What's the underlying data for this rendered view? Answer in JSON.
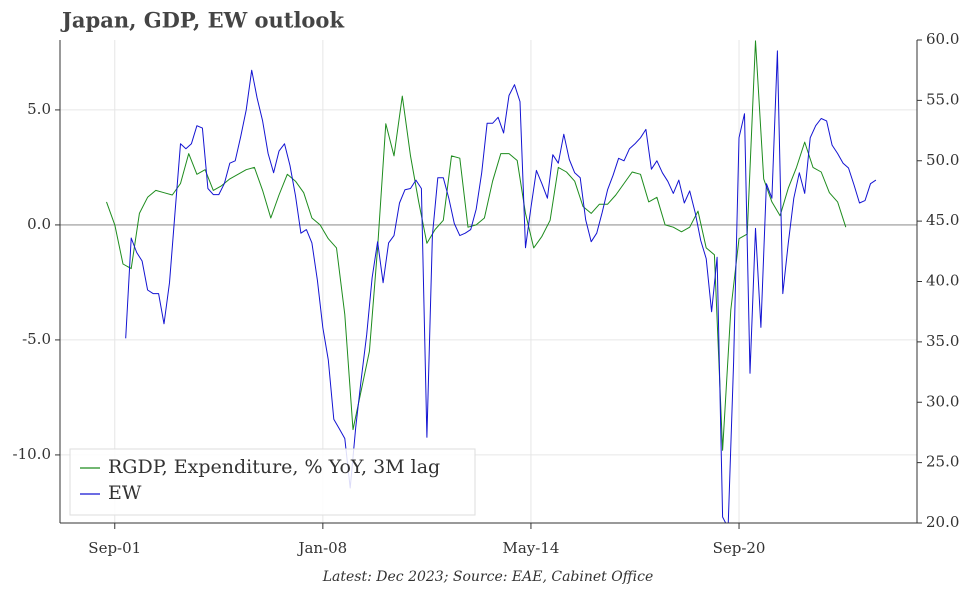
{
  "chart_data": {
    "type": "line",
    "title": "Japan, GDP, EW outlook",
    "footnote": "Latest: Dec 2023; Source: EAE, Cabinet Office",
    "xlim": [
      "2000-01",
      "2026-02"
    ],
    "xticks": [
      {
        "value": "2001-09",
        "label": "Sep-01"
      },
      {
        "value": "2008-01",
        "label": "Jan-08"
      },
      {
        "value": "2014-05",
        "label": "May-14"
      },
      {
        "value": "2020-09",
        "label": "Sep-20"
      }
    ],
    "ylim": [
      -12.96,
      8.04
    ],
    "yticks": [
      {
        "value": -10,
        "label": "-10.0"
      },
      {
        "value": -5,
        "label": "-5.0"
      },
      {
        "value": 0,
        "label": "0.0"
      },
      {
        "value": 5,
        "label": "5.0"
      }
    ],
    "y2lim": [
      20,
      60
    ],
    "y2ticks": [
      {
        "value": 20,
        "label": "20.0"
      },
      {
        "value": 25,
        "label": "25.0"
      },
      {
        "value": 30,
        "label": "30.0"
      },
      {
        "value": 35,
        "label": "35.0"
      },
      {
        "value": 40,
        "label": "40.0"
      },
      {
        "value": 45,
        "label": "45.0"
      },
      {
        "value": 50,
        "label": "50.0"
      },
      {
        "value": 55,
        "label": "55.0"
      },
      {
        "value": 60,
        "label": "60.0"
      }
    ],
    "grid": true,
    "reference_line": 0,
    "legend": "lower left",
    "series": [
      {
        "name": "RGDP, Expenditure, % YoY, 3M lag",
        "color": "#1e8c1e",
        "x": [
          "2001-06",
          "2001-09",
          "2001-12",
          "2002-03",
          "2002-06",
          "2002-09",
          "2002-12",
          "2003-03",
          "2003-06",
          "2003-09",
          "2003-12",
          "2004-03",
          "2004-06",
          "2004-09",
          "2004-12",
          "2005-03",
          "2005-06",
          "2005-09",
          "2005-12",
          "2006-03",
          "2006-06",
          "2006-09",
          "2006-12",
          "2007-03",
          "2007-06",
          "2007-09",
          "2007-12",
          "2008-03",
          "2008-06",
          "2008-09",
          "2008-12",
          "2009-03",
          "2009-06",
          "2009-09",
          "2009-12",
          "2010-03",
          "2010-06",
          "2010-09",
          "2010-12",
          "2011-03",
          "2011-06",
          "2011-09",
          "2011-12",
          "2012-03",
          "2012-06",
          "2012-09",
          "2012-12",
          "2013-03",
          "2013-06",
          "2013-09",
          "2013-12",
          "2014-03",
          "2014-06",
          "2014-09",
          "2014-12",
          "2015-03",
          "2015-06",
          "2015-09",
          "2015-12",
          "2016-03",
          "2016-06",
          "2016-09",
          "2016-12",
          "2017-03",
          "2017-06",
          "2017-09",
          "2017-12",
          "2018-03",
          "2018-06",
          "2018-09",
          "2018-12",
          "2019-03",
          "2019-06",
          "2019-09",
          "2019-12",
          "2020-03",
          "2020-06",
          "2020-09",
          "2020-12",
          "2021-03",
          "2021-06",
          "2021-09",
          "2021-12",
          "2022-03",
          "2022-06",
          "2022-09",
          "2022-12",
          "2023-03",
          "2023-06",
          "2023-09",
          "2023-12"
        ],
        "values": [
          1.0,
          0.0,
          -1.7,
          -1.9,
          0.5,
          1.2,
          1.5,
          1.4,
          1.3,
          1.8,
          3.1,
          2.2,
          2.4,
          1.5,
          1.7,
          2.0,
          2.2,
          2.4,
          2.5,
          1.5,
          0.3,
          1.3,
          2.2,
          1.9,
          1.4,
          0.3,
          0.0,
          -0.6,
          -1.0,
          -3.9,
          -8.9,
          -7.2,
          -5.5,
          -1.0,
          4.4,
          3.0,
          5.6,
          3.0,
          1.0,
          -0.8,
          -0.2,
          0.2,
          3.0,
          2.9,
          -0.1,
          0.0,
          0.3,
          1.9,
          3.1,
          3.1,
          2.8,
          0.5,
          -1.0,
          -0.5,
          0.2,
          2.5,
          2.3,
          1.9,
          0.8,
          0.5,
          0.9,
          0.9,
          1.3,
          1.8,
          2.3,
          2.2,
          1.0,
          1.2,
          0.0,
          -0.1,
          -0.3,
          -0.1,
          0.6,
          -1.0,
          -1.3,
          -9.8,
          -3.7,
          -0.6,
          -0.4,
          8.0,
          2.0,
          1.0,
          0.4,
          1.6,
          2.5,
          3.6,
          2.5,
          2.3,
          1.4,
          1.0,
          -0.1
        ]
      },
      {
        "name": "EW",
        "color": "#1414d2",
        "axis": "y2",
        "x": [
          "2002-01",
          "2002-03",
          "2002-05",
          "2002-07",
          "2002-09",
          "2002-11",
          "2003-01",
          "2003-03",
          "2003-05",
          "2003-07",
          "2003-09",
          "2003-11",
          "2004-01",
          "2004-03",
          "2004-05",
          "2004-07",
          "2004-09",
          "2004-11",
          "2005-01",
          "2005-03",
          "2005-05",
          "2005-07",
          "2005-09",
          "2005-11",
          "2006-01",
          "2006-03",
          "2006-05",
          "2006-07",
          "2006-09",
          "2006-11",
          "2007-01",
          "2007-03",
          "2007-05",
          "2007-07",
          "2007-09",
          "2007-11",
          "2008-01",
          "2008-03",
          "2008-05",
          "2008-07",
          "2008-09",
          "2008-11",
          "2009-01",
          "2009-03",
          "2009-05",
          "2009-07",
          "2009-09",
          "2009-11",
          "2010-01",
          "2010-03",
          "2010-05",
          "2010-07",
          "2010-09",
          "2010-11",
          "2011-01",
          "2011-03",
          "2011-05",
          "2011-07",
          "2011-09",
          "2011-11",
          "2012-01",
          "2012-03",
          "2012-05",
          "2012-07",
          "2012-09",
          "2012-11",
          "2013-01",
          "2013-03",
          "2013-05",
          "2013-07",
          "2013-09",
          "2013-11",
          "2014-01",
          "2014-03",
          "2014-05",
          "2014-07",
          "2014-09",
          "2014-11",
          "2015-01",
          "2015-03",
          "2015-05",
          "2015-07",
          "2015-09",
          "2015-11",
          "2016-01",
          "2016-03",
          "2016-05",
          "2016-07",
          "2016-09",
          "2016-11",
          "2017-01",
          "2017-03",
          "2017-05",
          "2017-07",
          "2017-09",
          "2017-11",
          "2018-01",
          "2018-03",
          "2018-05",
          "2018-07",
          "2018-09",
          "2018-11",
          "2019-01",
          "2019-03",
          "2019-05",
          "2019-07",
          "2019-09",
          "2019-11",
          "2020-01",
          "2020-03",
          "2020-05",
          "2020-07",
          "2020-09",
          "2020-11",
          "2021-01",
          "2021-03",
          "2021-05",
          "2021-07",
          "2021-09",
          "2021-11",
          "2022-01",
          "2022-03",
          "2022-05",
          "2022-07",
          "2022-09",
          "2022-11",
          "2023-01",
          "2023-03",
          "2023-05",
          "2023-07",
          "2023-09",
          "2023-11",
          "2024-01",
          "2024-03",
          "2024-05",
          "2024-07",
          "2024-09",
          "2024-11"
        ],
        "values": [
          35.3,
          43.6,
          42.4,
          41.7,
          39.3,
          39.0,
          39.0,
          36.5,
          39.9,
          45.7,
          51.4,
          51.0,
          51.4,
          52.9,
          52.7,
          47.7,
          47.2,
          47.2,
          48.1,
          49.8,
          50.0,
          52.0,
          54.2,
          57.5,
          55.2,
          53.3,
          50.6,
          49.0,
          50.8,
          51.4,
          49.6,
          47.1,
          44.0,
          44.3,
          43.2,
          40.1,
          36.2,
          33.5,
          28.6,
          27.8,
          27.0,
          22.9,
          27.9,
          31.9,
          35.6,
          40.3,
          43.3,
          39.9,
          43.2,
          43.8,
          46.5,
          47.6,
          47.7,
          48.4,
          47.7,
          27.1,
          43.8,
          48.6,
          48.6,
          46.9,
          44.8,
          43.8,
          44.0,
          44.3,
          46.0,
          49.0,
          53.1,
          53.1,
          53.6,
          52.3,
          55.4,
          56.3,
          54.9,
          42.8,
          46.1,
          49.2,
          48.1,
          46.9,
          50.5,
          49.8,
          52.2,
          50.1,
          49.0,
          48.6,
          45.1,
          43.3,
          44.0,
          45.7,
          47.6,
          48.8,
          50.2,
          50.0,
          51.0,
          51.4,
          51.9,
          52.6,
          49.3,
          50.0,
          49.0,
          48.3,
          47.3,
          48.4,
          46.5,
          47.5,
          45.7,
          43.4,
          41.9,
          37.5,
          42.0,
          20.5,
          19.6,
          33.3,
          51.9,
          53.9,
          32.4,
          44.4,
          36.2,
          48.1,
          46.9,
          59.1,
          39.0,
          43.2,
          46.9,
          49.0,
          47.3,
          51.9,
          52.9,
          53.5,
          53.3,
          51.3,
          50.6,
          49.8,
          49.4,
          48.0,
          46.5,
          46.7,
          48.1,
          48.4
        ]
      }
    ]
  }
}
